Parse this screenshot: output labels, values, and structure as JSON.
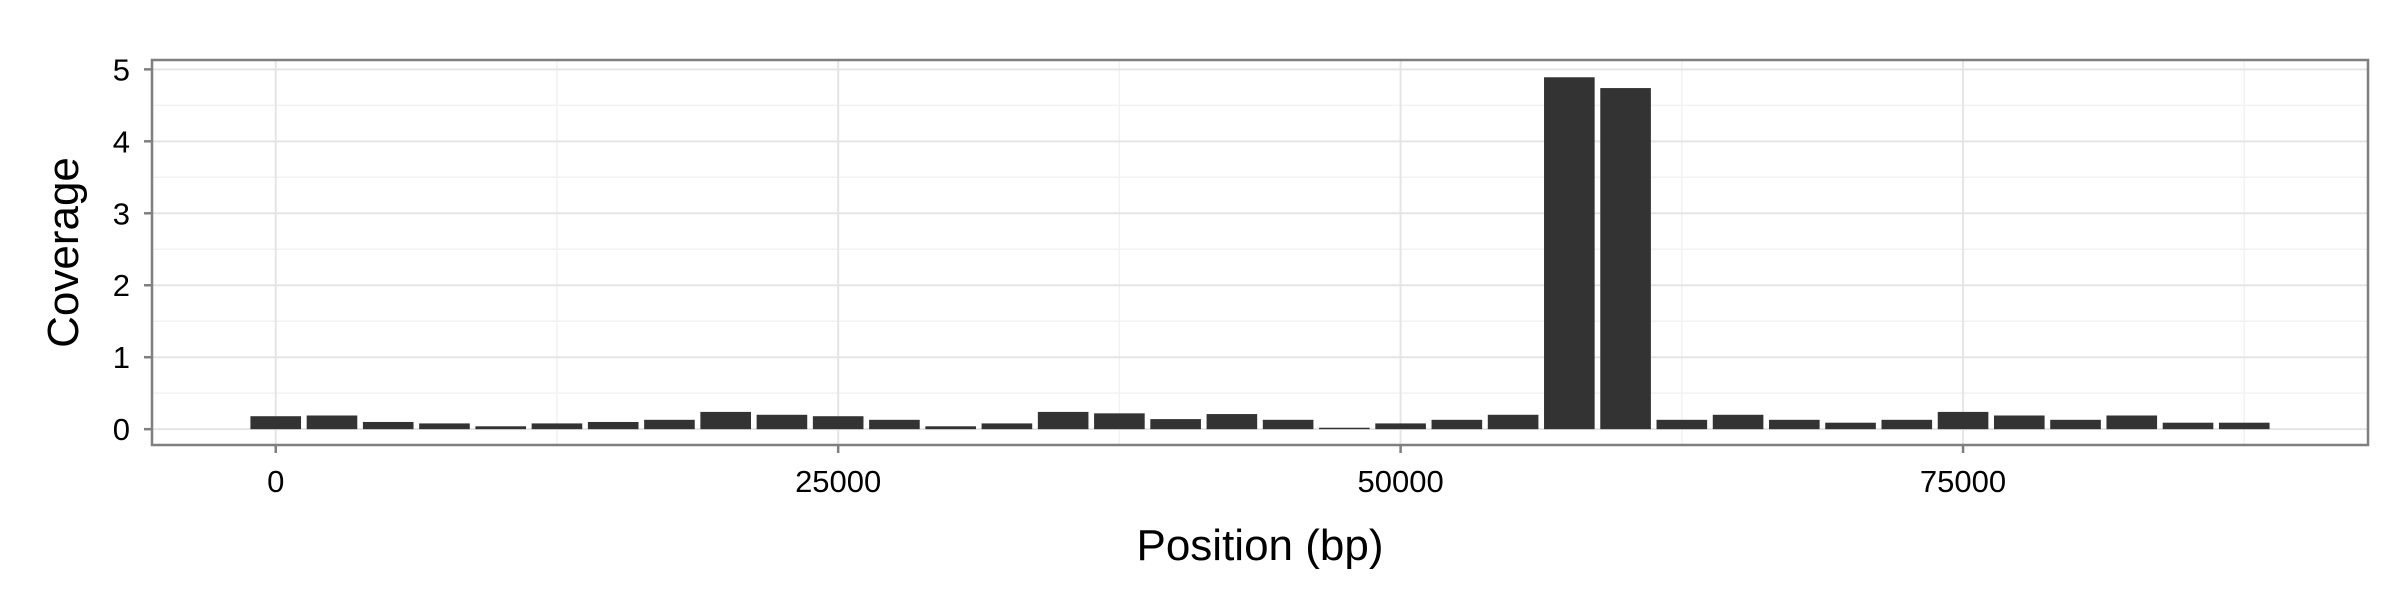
{
  "chart_data": {
    "type": "bar",
    "xlabel": "Position (bp)",
    "ylabel": "Coverage",
    "xlim": [
      -5500,
      93000
    ],
    "ylim": [
      -0.22,
      5.13
    ],
    "x_ticks": [
      0,
      25000,
      50000,
      75000
    ],
    "x_tick_labels": [
      "0",
      "25000",
      "50000",
      "75000"
    ],
    "y_ticks": [
      0,
      1,
      2,
      3,
      4,
      5
    ],
    "y_tick_labels": [
      "0",
      "1",
      "2",
      "3",
      "4",
      "5"
    ],
    "bar_width": 2250,
    "grid": true,
    "bar_color": "#333333",
    "x": [
      0,
      2500,
      5000,
      7500,
      10000,
      12500,
      15000,
      17500,
      20000,
      22500,
      25000,
      27500,
      30000,
      32500,
      35000,
      37500,
      40000,
      42500,
      45000,
      47500,
      50000,
      52500,
      55000,
      57500,
      60000,
      62500,
      65000,
      67500,
      70000,
      72500,
      75000,
      77500,
      80000,
      82500,
      85000,
      87500
    ],
    "values": [
      0.18,
      0.19,
      0.1,
      0.08,
      0.04,
      0.08,
      0.1,
      0.13,
      0.24,
      0.2,
      0.18,
      0.13,
      0.04,
      0.08,
      0.24,
      0.22,
      0.14,
      0.21,
      0.13,
      0.02,
      0.08,
      0.13,
      0.2,
      4.89,
      4.74,
      0.13,
      0.2,
      0.13,
      0.09,
      0.13,
      0.24,
      0.19,
      0.13,
      0.19,
      0.09,
      0.09
    ]
  }
}
